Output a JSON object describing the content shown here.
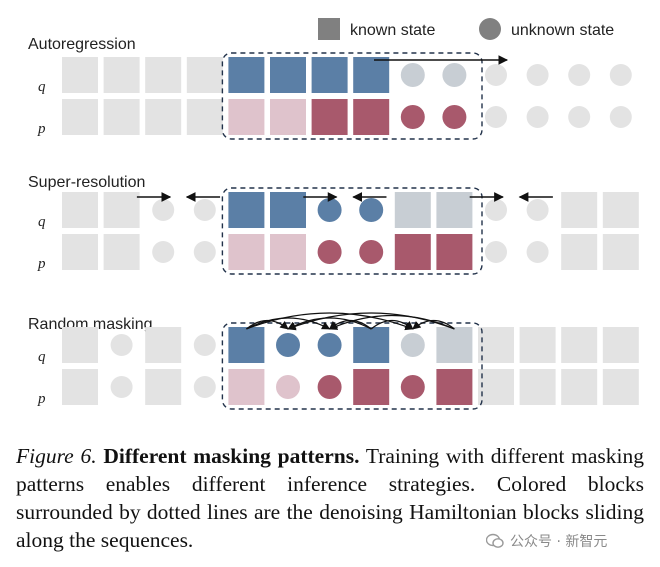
{
  "legend": {
    "known_label": "known state",
    "unknown_label": "unknown state"
  },
  "colors": {
    "q_dark": "#5b7fa6",
    "q_light": "#c8ced4",
    "p_dark": "#a8596c",
    "p_light": "#dfc3cc",
    "inactive": "#e3e3e3",
    "legend_gray": "#808080"
  },
  "row_labels": {
    "q": "q",
    "p": "p"
  },
  "panels": [
    {
      "title": "Autoregression",
      "q": [
        "gs",
        "gs",
        "gs",
        "gs",
        "qd",
        "qd",
        "qd",
        "qd",
        "ql_c",
        "ql_c",
        "gc",
        "gc",
        "gc",
        "gc"
      ],
      "p": [
        "gs",
        "gs",
        "gs",
        "gs",
        "pl",
        "pl",
        "pd",
        "pd",
        "pd_c",
        "pd_c",
        "gc",
        "gc",
        "gc",
        "gc"
      ],
      "arrows": [
        {
          "from": 7.5,
          "to": 10.7
        }
      ]
    },
    {
      "title": "Super-resolution",
      "q": [
        "gs",
        "gs",
        "gc",
        "gc",
        "qd",
        "qd",
        "qd_c",
        "qd_c",
        "ql",
        "ql",
        "gc",
        "gc",
        "gs",
        "gs"
      ],
      "p": [
        "gs",
        "gs",
        "gc",
        "gc",
        "pl",
        "pl",
        "pd_c",
        "pd_c",
        "pd",
        "pd",
        "gc",
        "gc",
        "gs",
        "gs"
      ],
      "arrows": [
        {
          "from": 1.8,
          "to": 2.6
        },
        {
          "from": 3.8,
          "to": 3.0
        },
        {
          "from": 5.8,
          "to": 6.6
        },
        {
          "from": 7.8,
          "to": 7.0
        },
        {
          "from": 9.8,
          "to": 10.6
        },
        {
          "from": 11.8,
          "to": 11.0
        }
      ]
    },
    {
      "title": "Random masking",
      "q": [
        "gs",
        "gc",
        "gs",
        "gc",
        "qd",
        "qd_c",
        "qd_c",
        "qd",
        "ql_c",
        "ql",
        "gs",
        "gs",
        "gs",
        "gs"
      ],
      "p": [
        "gs",
        "gc",
        "gs",
        "gc",
        "pl",
        "pl_c",
        "pd_c",
        "pd",
        "pd_c",
        "pd",
        "gs",
        "gs",
        "gs",
        "gs"
      ],
      "arcs": [
        [
          4,
          5
        ],
        [
          4,
          6
        ],
        [
          4,
          8
        ],
        [
          7,
          5
        ],
        [
          7,
          6
        ],
        [
          7,
          8
        ],
        [
          9,
          5
        ],
        [
          9,
          6
        ],
        [
          9,
          8
        ]
      ]
    }
  ],
  "caption": {
    "label": "Figure 6.",
    "title": "Different masking patterns.",
    "text": "Training with different masking patterns enables different inference strategies. Colored blocks surrounded by dotted lines are the denoising Hamiltonian blocks sliding along the sequences."
  },
  "watermark": "公众号 · 新智元"
}
